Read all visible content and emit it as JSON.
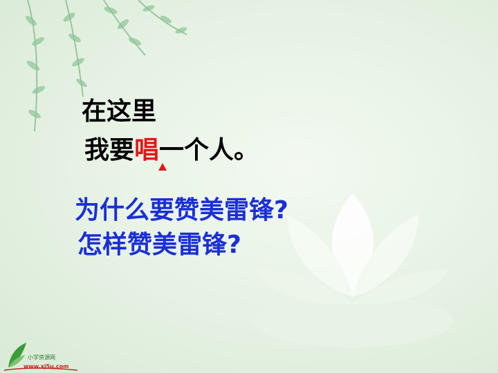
{
  "slide": {
    "line1": "在这里",
    "line2_before": "我要",
    "line2_highlight": "唱",
    "line2_after": "一个人。",
    "question1": "为什么要赞美雷锋?",
    "question2": "怎样赞美雷锋?"
  },
  "logo": {
    "name": "小学资源网",
    "url": "www.xj5u.com"
  },
  "colors": {
    "text": "#000000",
    "highlight": "#e01818",
    "question": "#1a2fd6",
    "background": "#e8f3e6"
  }
}
